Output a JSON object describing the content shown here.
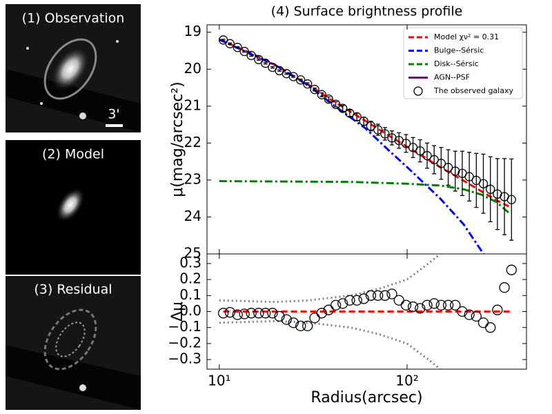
{
  "panels": [
    {
      "label": "(1) Observation",
      "scale_label": "3'"
    },
    {
      "label": "(2) Model"
    },
    {
      "label": "(3) Residual"
    }
  ],
  "chart_data": [
    {
      "type": "line",
      "title": "(4) Surface brightness profile",
      "y_label": "μ(mag/arcsec²)",
      "xscale": "log",
      "xlim": [
        8.6,
        432
      ],
      "ylim": [
        18.8,
        25
      ],
      "y_inverted": true,
      "yticks": [
        19,
        20,
        21,
        22,
        23,
        24,
        25
      ],
      "legend": "upper right",
      "series": [
        {
          "name": "Model χν² = 0.31",
          "color": "#ff0000",
          "style": "dashed",
          "x": [
            10,
            15,
            20,
            30,
            40,
            60,
            80,
            100,
            150,
            200,
            300,
            350
          ],
          "values": [
            19.2,
            19.58,
            19.9,
            20.43,
            20.85,
            21.4,
            21.8,
            22.1,
            22.65,
            23.02,
            23.55,
            23.72
          ]
        },
        {
          "name": "Bulge--Sérsic",
          "color": "#0000ff",
          "style": "dashdot",
          "x": [
            10,
            20,
            30,
            40,
            60,
            80,
            100,
            150,
            200,
            255
          ],
          "values": [
            19.2,
            19.9,
            20.45,
            20.95,
            21.6,
            22.2,
            22.65,
            23.5,
            24.2,
            25.0
          ]
        },
        {
          "name": "Disk--Sérsic",
          "color": "#008000",
          "style": "dashdot",
          "x": [
            10,
            50,
            100,
            150,
            200,
            250,
            300,
            350
          ],
          "values": [
            23.03,
            23.05,
            23.1,
            23.15,
            23.25,
            23.4,
            23.6,
            23.9
          ]
        },
        {
          "name": "AGN--PSF",
          "color": "#800080",
          "style": "solid"
        },
        {
          "name": "The observed galaxy",
          "color": "#000000",
          "style": "circle",
          "x": [
            10.5,
            11.4,
            12.5,
            13.6,
            14.8,
            16.2,
            17.6,
            19.2,
            20.9,
            22.8,
            24.8,
            27.1,
            29.5,
            32.2,
            35.1,
            38.2,
            41.7,
            45.4,
            49.5,
            54.0,
            58.8,
            64.1,
            69.9,
            76.2,
            83.0,
            90.5,
            98.7,
            107.5,
            117.2,
            127.8,
            139.3,
            151.8,
            165.5,
            180.4,
            196.6,
            214.3,
            233.6,
            254.6,
            277.6,
            302.5,
            329.8,
            359.5
          ],
          "values": [
            19.21,
            19.31,
            19.41,
            19.52,
            19.63,
            19.74,
            19.84,
            19.95,
            20.04,
            20.12,
            20.2,
            20.29,
            20.4,
            20.55,
            20.69,
            20.81,
            20.95,
            21.06,
            21.19,
            21.29,
            21.41,
            21.54,
            21.64,
            21.75,
            21.86,
            21.93,
            22.01,
            22.12,
            22.21,
            22.34,
            22.45,
            22.55,
            22.66,
            22.76,
            22.82,
            22.91,
            23.01,
            23.1,
            23.25,
            23.38,
            23.45,
            23.53
          ],
          "errors": [
            0.02,
            0.02,
            0.02,
            0.02,
            0.02,
            0.02,
            0.02,
            0.02,
            0.02,
            0.02,
            0.02,
            0.02,
            0.03,
            0.04,
            0.05,
            0.06,
            0.07,
            0.08,
            0.09,
            0.1,
            0.11,
            0.13,
            0.15,
            0.17,
            0.19,
            0.21,
            0.24,
            0.27,
            0.3,
            0.34,
            0.38,
            0.43,
            0.48,
            0.54,
            0.6,
            0.66,
            0.73,
            0.8,
            0.88,
            0.96,
            1.03,
            1.1
          ]
        }
      ]
    },
    {
      "type": "line",
      "x_label": "Radius(arcsec)",
      "y_label": "Δμ",
      "xscale": "log",
      "xlim": [
        8.6,
        432
      ],
      "ylim": [
        -0.36,
        0.36
      ],
      "xticks": [
        {
          "value": 10,
          "label": "10¹"
        },
        {
          "value": 100,
          "label": "10²"
        }
      ],
      "yticks": [
        {
          "value": -0.3,
          "label": "−0.3"
        },
        {
          "value": -0.2,
          "label": "−0.2"
        },
        {
          "value": -0.1,
          "label": "−0.1"
        },
        {
          "value": 0,
          "label": "0.0"
        },
        0.1,
        0.2,
        0.3
      ],
      "series": [
        {
          "color": "#ff0000",
          "style": "dashed",
          "x": [
            10.5,
            359.5
          ],
          "values": [
            0,
            0
          ]
        },
        {
          "color": "#808080",
          "style": "dotted",
          "x": [
            10,
            20,
            30,
            50,
            70,
            100,
            130,
            150
          ],
          "values": [
            0.07,
            0.06,
            0.07,
            0.1,
            0.14,
            0.2,
            0.3,
            0.36
          ]
        },
        {
          "color": "#808080",
          "style": "dotted",
          "x": [
            10,
            20,
            30,
            50,
            70,
            100,
            130,
            150
          ],
          "values": [
            -0.07,
            -0.06,
            -0.07,
            -0.1,
            -0.14,
            -0.2,
            -0.3,
            -0.36
          ]
        },
        {
          "color": "#000000",
          "style": "circle",
          "x": [
            10.5,
            11.4,
            12.5,
            13.6,
            14.8,
            16.2,
            17.6,
            19.2,
            20.9,
            22.8,
            24.8,
            27.1,
            29.5,
            32.2,
            35.1,
            38.2,
            41.7,
            45.4,
            49.5,
            54.0,
            58.8,
            64.1,
            69.9,
            76.2,
            83.0,
            90.5,
            98.7,
            107.5,
            117.2,
            127.8,
            139.3,
            151.8,
            165.5,
            180.4,
            196.6,
            214.3,
            233.6,
            254.6,
            277.6,
            302.5,
            329.8,
            359.5
          ],
          "values": [
            -0.01,
            -0.005,
            -0.02,
            -0.015,
            -0.01,
            -0.01,
            -0.01,
            -0.01,
            -0.03,
            -0.05,
            -0.07,
            -0.09,
            -0.09,
            -0.04,
            -0.01,
            0.01,
            0.04,
            0.05,
            0.07,
            0.07,
            0.08,
            0.1,
            0.1,
            0.1,
            0.11,
            0.07,
            0.04,
            0.03,
            0.02,
            0.04,
            0.05,
            0.04,
            0.04,
            0.04,
            0,
            -0.02,
            -0.03,
            -0.07,
            -0.1,
            0.01,
            0.15,
            0.26
          ]
        }
      ]
    }
  ]
}
